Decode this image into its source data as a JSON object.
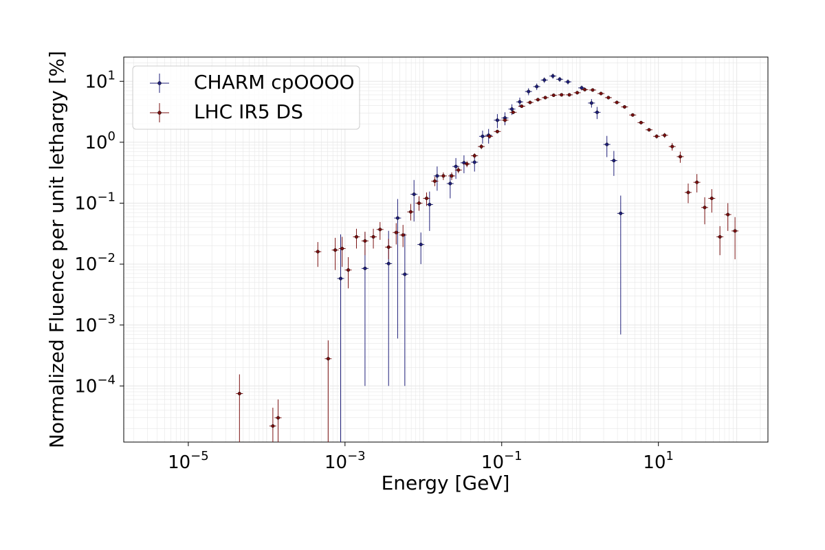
{
  "chart_data": {
    "type": "scatter",
    "xlabel": "Energy [GeV]",
    "ylabel": "Normalized Fluence per unit lethargy [%]",
    "xscale": "log",
    "yscale": "log",
    "xlim": [
      1.5e-06,
      250
    ],
    "ylim": [
      1.2e-05,
      25
    ],
    "x_ticks": [
      {
        "value": 1e-05,
        "base": "10",
        "exp": "−5"
      },
      {
        "value": 0.001,
        "base": "10",
        "exp": "−3"
      },
      {
        "value": 0.1,
        "base": "10",
        "exp": "−1"
      },
      {
        "value": 10,
        "base": "10",
        "exp": "1"
      }
    ],
    "y_ticks": [
      {
        "value": 0.0001,
        "base": "10",
        "exp": "−4"
      },
      {
        "value": 0.001,
        "base": "10",
        "exp": "−3"
      },
      {
        "value": 0.01,
        "base": "10",
        "exp": "−2"
      },
      {
        "value": 0.1,
        "base": "10",
        "exp": "−1"
      },
      {
        "value": 1,
        "base": "10",
        "exp": "0"
      },
      {
        "value": 10,
        "base": "10",
        "exp": "1"
      }
    ],
    "grid": true,
    "legend_position": "top-left",
    "series": [
      {
        "name": "CHARM cpOOOO",
        "color": "#1f1f7a",
        "x": [
          0.00088,
          0.0018,
          0.0036,
          0.0047,
          0.0058,
          0.0076,
          0.0093,
          0.012,
          0.015,
          0.022,
          0.026,
          0.033,
          0.045,
          0.057,
          0.068,
          0.088,
          0.11,
          0.135,
          0.17,
          0.22,
          0.28,
          0.35,
          0.45,
          0.55,
          0.7,
          1.05,
          1.4,
          1.65,
          2.2,
          2.7,
          3.3
        ],
        "y": [
          0.0058,
          0.0085,
          0.0102,
          0.057,
          0.0068,
          0.14,
          0.021,
          0.095,
          0.28,
          0.21,
          0.4,
          0.46,
          0.47,
          1.25,
          1.3,
          2.3,
          2.5,
          3.5,
          4.6,
          6.8,
          8.2,
          10.5,
          12.2,
          10.8,
          9.8,
          7.8,
          4.4,
          3.1,
          0.92,
          0.5,
          0.068
        ],
        "y_err_low": [
          0.0058,
          0.0084,
          0.0101,
          0.0564,
          0.0067,
          0.09,
          0.011,
          0.06,
          0.12,
          0.09,
          0.15,
          0.15,
          0.14,
          0.3,
          0.35,
          0.6,
          0.6,
          0.7,
          0.8,
          0.9,
          1.0,
          1.1,
          1.2,
          1.0,
          0.9,
          0.7,
          0.7,
          0.7,
          0.35,
          0.22,
          0.0673
        ],
        "y_err_high": [
          0.025,
          0.025,
          0.025,
          0.06,
          0.025,
          0.1,
          0.012,
          0.06,
          0.12,
          0.09,
          0.15,
          0.15,
          0.14,
          0.3,
          0.35,
          0.6,
          0.6,
          0.7,
          0.8,
          0.9,
          1.0,
          1.1,
          1.2,
          1.0,
          0.9,
          0.7,
          0.7,
          0.7,
          0.35,
          0.22,
          0.065
        ]
      },
      {
        "name": "LHC IR5 DS",
        "color": "#7a1010",
        "x": [
          4.5e-05,
          0.00012,
          0.00014,
          0.00045,
          0.00061,
          0.00075,
          0.00092,
          0.0011,
          0.0014,
          0.0018,
          0.0023,
          0.0028,
          0.0036,
          0.0045,
          0.0055,
          0.0069,
          0.0088,
          0.011,
          0.014,
          0.018,
          0.023,
          0.028,
          0.036,
          0.045,
          0.055,
          0.07,
          0.088,
          0.11,
          0.14,
          0.18,
          0.23,
          0.29,
          0.36,
          0.46,
          0.58,
          0.73,
          0.92,
          1.15,
          1.45,
          1.85,
          2.3,
          2.95,
          3.7,
          4.7,
          6,
          7.6,
          9.5,
          12,
          15,
          19,
          24,
          31,
          39,
          48,
          61,
          77,
          95
        ],
        "y": [
          7.5e-05,
          2.2e-05,
          3e-05,
          0.016,
          0.00028,
          0.017,
          0.018,
          0.008,
          0.028,
          0.024,
          0.028,
          0.037,
          0.019,
          0.033,
          0.03,
          0.072,
          0.1,
          0.12,
          0.23,
          0.28,
          0.28,
          0.35,
          0.44,
          0.6,
          0.85,
          1.25,
          1.5,
          2.3,
          3.1,
          3.9,
          4.5,
          5.0,
          5.4,
          5.9,
          6.0,
          6.0,
          6.5,
          7.3,
          7.2,
          6.3,
          5.4,
          4.5,
          3.8,
          2.8,
          2.1,
          1.6,
          1.25,
          1.3,
          0.85,
          0.58,
          0.15,
          0.22,
          0.085,
          0.12,
          0.028,
          0.065,
          0.035
        ],
        "y_err_low": [
          7.4e-05,
          2.18e-05,
          2.98e-05,
          0.007,
          0.000279,
          0.009,
          0.009,
          0.004,
          0.01,
          0.01,
          0.01,
          0.012,
          0.007,
          0.012,
          0.011,
          0.02,
          0.025,
          0.03,
          0.04,
          0.04,
          0.04,
          0.04,
          0.05,
          0.06,
          0.08,
          0.1,
          0.1,
          0.15,
          0.15,
          0.15,
          0.15,
          0.15,
          0.15,
          0.15,
          0.15,
          0.15,
          0.15,
          0.15,
          0.15,
          0.15,
          0.15,
          0.15,
          0.12,
          0.1,
          0.1,
          0.1,
          0.1,
          0.12,
          0.12,
          0.12,
          0.05,
          0.07,
          0.04,
          0.05,
          0.014,
          0.03,
          0.023
        ],
        "y_err_high": [
          8e-05,
          2.2e-05,
          3e-05,
          0.007,
          0.00028,
          0.01,
          0.01,
          0.005,
          0.01,
          0.01,
          0.01,
          0.012,
          0.007,
          0.014,
          0.014,
          0.025,
          0.03,
          0.03,
          0.04,
          0.04,
          0.04,
          0.04,
          0.05,
          0.06,
          0.08,
          0.1,
          0.1,
          0.15,
          0.15,
          0.15,
          0.15,
          0.15,
          0.15,
          0.15,
          0.15,
          0.15,
          0.15,
          0.15,
          0.15,
          0.15,
          0.15,
          0.15,
          0.12,
          0.1,
          0.1,
          0.1,
          0.1,
          0.12,
          0.12,
          0.12,
          0.06,
          0.08,
          0.04,
          0.05,
          0.014,
          0.035,
          0.024
        ]
      }
    ]
  }
}
